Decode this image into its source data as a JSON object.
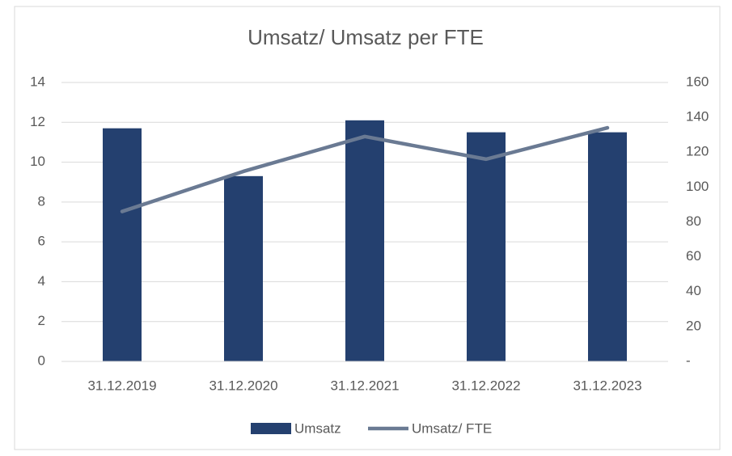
{
  "chart_data": {
    "type": "bar_line",
    "title": "Umsatz/ Umsatz per FTE",
    "categories": [
      "31.12.2019",
      "31.12.2020",
      "31.12.2021",
      "31.12.2022",
      "31.12.2023"
    ],
    "series": [
      {
        "name": "Umsatz",
        "type": "bar",
        "color": "#24406f",
        "values": [
          11.7,
          9.3,
          12.1,
          11.5,
          11.5
        ]
      },
      {
        "name": "Umsatz/ FTE",
        "type": "line",
        "axis": "y2",
        "color": "#6a7a93",
        "values": [
          86,
          109,
          129,
          116,
          134
        ]
      }
    ],
    "ylim": [
      0,
      14
    ],
    "yticks": [
      0,
      2,
      4,
      6,
      8,
      10,
      12,
      14
    ],
    "y2lim": [
      0,
      160
    ],
    "y2ticks": [
      {
        "value": 0,
        "label": "-"
      },
      20,
      40,
      60,
      80,
      100,
      120,
      140,
      160
    ],
    "grid": true,
    "legend": "bottom"
  }
}
